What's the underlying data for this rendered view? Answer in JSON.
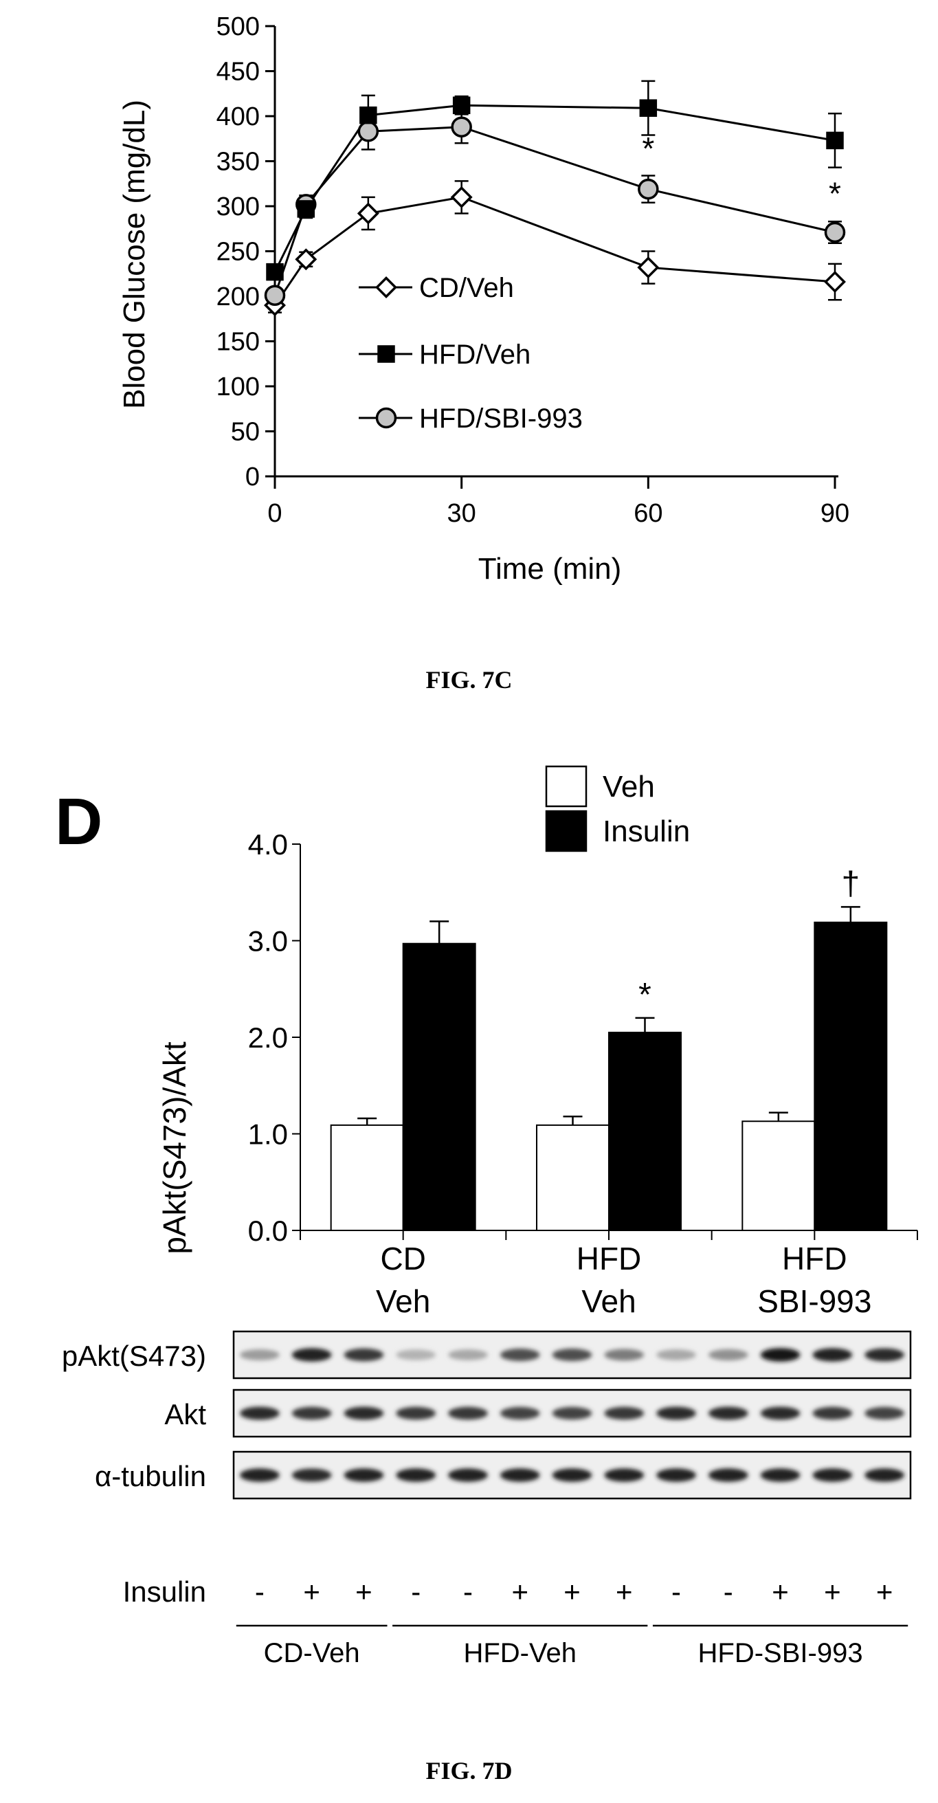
{
  "chart_data": [
    {
      "type": "line",
      "xlabel": "Time (min)",
      "ylabel": "Blood Glucose (mg/dL)",
      "xlim": [
        0,
        90
      ],
      "ylim": [
        0,
        500
      ],
      "xticks": [
        0,
        30,
        60,
        90
      ],
      "yticks": [
        0,
        50,
        100,
        150,
        200,
        250,
        300,
        350,
        400,
        450,
        500
      ],
      "x": [
        0,
        5,
        15,
        30,
        60,
        90
      ],
      "series": [
        {
          "name": "CD/Veh",
          "marker": "diamond-open",
          "values": [
            190,
            241,
            292,
            310,
            232,
            216
          ],
          "errors": [
            8,
            8,
            18,
            18,
            18,
            20
          ]
        },
        {
          "name": "HFD/Veh",
          "marker": "square-filled",
          "values": [
            227,
            297,
            401,
            412,
            409,
            373
          ],
          "errors": [
            8,
            10,
            22,
            10,
            30,
            30
          ]
        },
        {
          "name": "HFD/SBI-993",
          "marker": "circle-gray",
          "values": [
            201,
            302,
            383,
            388,
            319,
            271
          ],
          "errors": [
            8,
            10,
            20,
            18,
            15,
            12
          ]
        }
      ],
      "annotations": [
        {
          "x": 60,
          "y": 352,
          "text": "*"
        },
        {
          "x": 90,
          "y": 302,
          "text": "*"
        }
      ],
      "legend_position": "inside-center",
      "caption": "FIG. 7C"
    },
    {
      "type": "bar",
      "panel_label": "D",
      "ylabel": "pAkt(S473)/Akt",
      "ylim": [
        0,
        4
      ],
      "yticks": [
        "0.0",
        "1.0",
        "2.0",
        "3.0",
        "4.0"
      ],
      "categories": [
        [
          "CD",
          "Veh"
        ],
        [
          "HFD",
          "Veh"
        ],
        [
          "HFD",
          "SBI-993"
        ]
      ],
      "series": [
        {
          "name": "Veh",
          "color": "#ffffff",
          "values": [
            1.09,
            1.09,
            1.13
          ],
          "errors": [
            0.07,
            0.09,
            0.09
          ]
        },
        {
          "name": "Insulin",
          "color": "#000000",
          "values": [
            2.97,
            2.05,
            3.19
          ],
          "errors": [
            0.23,
            0.15,
            0.16
          ]
        }
      ],
      "annotations": [
        {
          "category": 1,
          "series": 1,
          "text": "*"
        },
        {
          "category": 2,
          "series": 1,
          "text": "†"
        }
      ],
      "legend_position": "top-right",
      "blot": {
        "rows": [
          {
            "label": "pAkt(S473)",
            "intensities": [
              0.35,
              0.9,
              0.8,
              0.25,
              0.3,
              0.7,
              0.7,
              0.5,
              0.3,
              0.4,
              0.95,
              0.9,
              0.85
            ]
          },
          {
            "label": "Akt",
            "intensities": [
              0.85,
              0.8,
              0.85,
              0.8,
              0.8,
              0.75,
              0.75,
              0.8,
              0.85,
              0.85,
              0.85,
              0.8,
              0.75
            ]
          },
          {
            "label": "α-tubulin",
            "intensities": [
              0.9,
              0.85,
              0.9,
              0.9,
              0.9,
              0.9,
              0.9,
              0.9,
              0.9,
              0.9,
              0.9,
              0.9,
              0.9
            ]
          }
        ],
        "insulin_label": "Insulin",
        "insulin": [
          "-",
          "+",
          "+",
          "-",
          "-",
          "+",
          "+",
          "+",
          "-",
          "-",
          "+",
          "+",
          "+"
        ],
        "groups": [
          {
            "label": "CD-Veh",
            "lanes": [
              0,
              2
            ]
          },
          {
            "label": "HFD-Veh",
            "lanes": [
              3,
              7
            ]
          },
          {
            "label": "HFD-SBI-993",
            "lanes": [
              8,
              12
            ]
          }
        ]
      },
      "caption": "FIG. 7D"
    }
  ]
}
